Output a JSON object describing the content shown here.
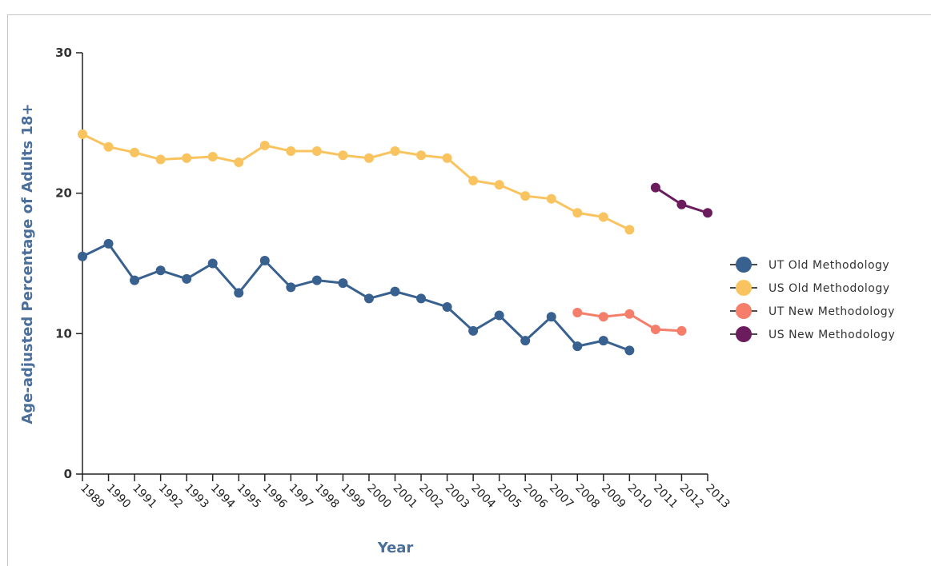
{
  "page": {
    "banner_text": ""
  },
  "chart_data": {
    "type": "line",
    "title": "",
    "xlabel": "Year",
    "ylabel": "Age-adjusted Percentage of Adults 18+",
    "categories": [
      "1989",
      "1990",
      "1991",
      "1992",
      "1993",
      "1994",
      "1995",
      "1996",
      "1997",
      "1998",
      "1999",
      "2000",
      "2001",
      "2002",
      "2003",
      "2004",
      "2005",
      "2006",
      "2007",
      "2008",
      "2009",
      "2010",
      "2011",
      "2012",
      "2013"
    ],
    "y_ticks": [
      0,
      10,
      20,
      30
    ],
    "ylim": [
      0,
      30
    ],
    "grid": false,
    "legend_position": "right",
    "series": [
      {
        "name": "UT Old Methodology",
        "color": "#386190",
        "values": [
          15.5,
          16.4,
          13.8,
          14.5,
          13.9,
          15.0,
          12.9,
          15.2,
          13.3,
          13.8,
          13.6,
          12.5,
          13.0,
          12.5,
          11.9,
          10.2,
          11.3,
          9.5,
          11.2,
          9.1,
          9.5,
          8.8,
          null,
          null,
          null
        ]
      },
      {
        "name": "US Old Methodology",
        "color": "#f9c45f",
        "values": [
          24.2,
          23.3,
          22.9,
          22.4,
          22.5,
          22.6,
          22.2,
          23.4,
          23.0,
          23.0,
          22.7,
          22.5,
          23.0,
          22.7,
          22.5,
          20.9,
          20.6,
          19.8,
          19.6,
          18.6,
          18.3,
          17.4,
          null,
          null,
          null
        ]
      },
      {
        "name": "UT New Methodology",
        "color": "#f47e6a",
        "values": [
          null,
          null,
          null,
          null,
          null,
          null,
          null,
          null,
          null,
          null,
          null,
          null,
          null,
          null,
          null,
          null,
          null,
          null,
          null,
          11.5,
          11.2,
          11.4,
          10.3,
          10.2,
          null
        ]
      },
      {
        "name": "US New Methodology",
        "color": "#6a1c5c",
        "values": [
          null,
          null,
          null,
          null,
          null,
          null,
          null,
          null,
          null,
          null,
          null,
          null,
          null,
          null,
          null,
          null,
          null,
          null,
          null,
          null,
          null,
          null,
          20.4,
          19.2,
          18.6
        ]
      }
    ]
  }
}
